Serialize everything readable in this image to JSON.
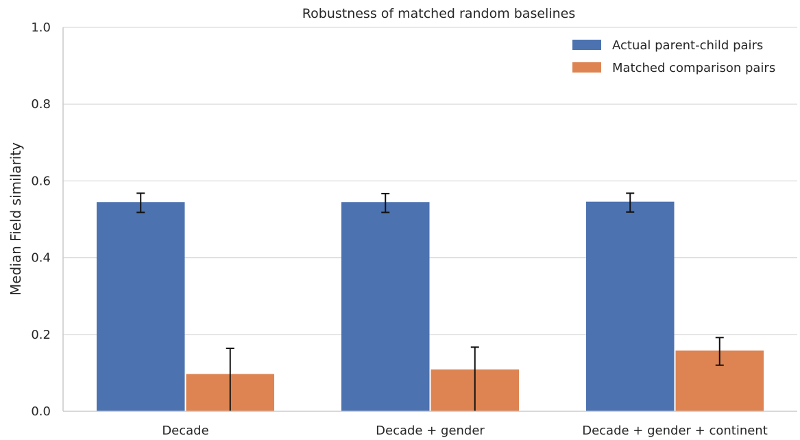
{
  "chart_data": {
    "type": "bar",
    "title": "Robustness of matched random baselines",
    "xlabel": "",
    "ylabel": "Median Field similarity",
    "ylim": [
      0,
      1.0
    ],
    "yticks": [
      "0.0",
      "0.2",
      "0.4",
      "0.6",
      "0.8",
      "1.0"
    ],
    "categories": [
      "Decade",
      "Decade + gender",
      "Decade + gender + continent"
    ],
    "grid": "horizontal",
    "legend_position": "top-right",
    "series": [
      {
        "name": "Actual parent-child pairs",
        "color": "#4c72b0",
        "values": [
          0.545,
          0.545,
          0.546
        ],
        "error_low": [
          0.518,
          0.518,
          0.519
        ],
        "error_high": [
          0.568,
          0.567,
          0.568
        ]
      },
      {
        "name": "Matched comparison pairs",
        "color": "#dd8452",
        "values": [
          0.097,
          0.109,
          0.158
        ],
        "error_low": [
          0.0,
          0.0,
          0.12
        ],
        "error_high": [
          0.164,
          0.167,
          0.192
        ]
      }
    ]
  }
}
